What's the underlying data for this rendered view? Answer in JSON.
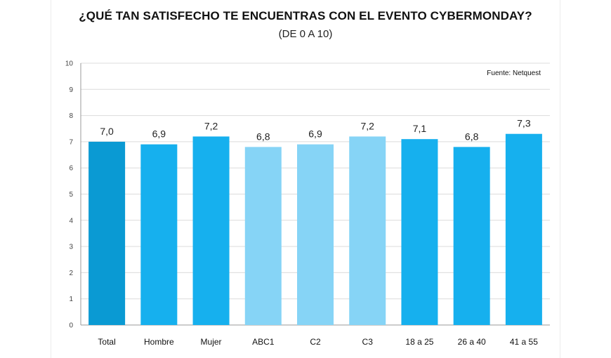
{
  "chart_data": {
    "type": "bar",
    "title": "¿QUÉ TAN SATISFECHO TE ENCUENTRAS CON EL EVENTO CYBERMONDAY?",
    "subtitle": "(DE 0 A 10)",
    "source": "Fuente: Netquest",
    "categories": [
      "Total",
      "Hombre",
      "Mujer",
      "ABC1",
      "C2",
      "C3",
      "18 a 25",
      "26 a 40",
      "41 a 55"
    ],
    "values": [
      7.0,
      6.9,
      7.2,
      6.8,
      6.9,
      7.2,
      7.1,
      6.8,
      7.3
    ],
    "value_labels": [
      "7,0",
      "6,9",
      "7,2",
      "6,8",
      "6,9",
      "7,2",
      "7,1",
      "6,8",
      "7,3"
    ],
    "ylim": [
      0,
      10
    ],
    "yticks": [
      "0",
      "1",
      "2",
      "3",
      "4",
      "5",
      "6",
      "7",
      "8",
      "9",
      "10"
    ],
    "grid": true,
    "colors": [
      "#0a9ad3",
      "#16b0ee",
      "#16b0ee",
      "#86d4f6",
      "#86d4f6",
      "#86d4f6",
      "#16b0ee",
      "#16b0ee",
      "#16b0ee"
    ]
  }
}
